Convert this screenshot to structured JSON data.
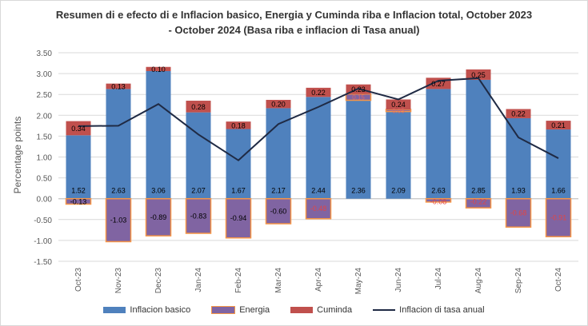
{
  "chart_data": {
    "type": "bar",
    "title_line_1": "Resumen di e efecto di e Inflacion basico, Energia y Cuminda riba e Inflacion total, October 2023",
    "title_line_2": "- October 2024 (Basa riba e inflacion di Tasa anual)",
    "ylabel": "Percentage points",
    "ylim": [
      -1.5,
      3.5
    ],
    "yticks": [
      "3.50",
      "3.00",
      "2.50",
      "2.00",
      "1.50",
      "1.00",
      "0.50",
      "0.00",
      "-0.50",
      "-1.00",
      "-1.50"
    ],
    "categories": [
      "Oct-23",
      "Nov-23",
      "Dec-23",
      "Jan-24",
      "Feb-24",
      "Mar-24",
      "Apr-24",
      "May-24",
      "Jun-24",
      "Jul-24",
      "Aug-24",
      "Sep-24",
      "Oct-24"
    ],
    "series": [
      {
        "name": "Inflacion basico",
        "kind": "bar",
        "color": "#4f81bd",
        "values": [
          1.52,
          2.63,
          3.06,
          2.07,
          1.67,
          2.17,
          2.44,
          2.36,
          2.09,
          2.63,
          2.85,
          1.93,
          1.66
        ],
        "labels": [
          "1.52",
          "2.63",
          "3.06",
          "2.07",
          "1.67",
          "2.17",
          "2.44",
          "2.36",
          "2.09",
          "2.63",
          "2.85",
          "1.93",
          "1.66"
        ]
      },
      {
        "name": "Energia",
        "kind": "bar",
        "color": "#8064a2",
        "border": "#f79646",
        "values": [
          -0.13,
          -1.03,
          -0.89,
          -0.83,
          -0.94,
          -0.6,
          -0.48,
          0.15,
          0.05,
          -0.08,
          -0.22,
          -0.68,
          -0.91
        ],
        "labels": [
          "-0.13",
          "-1.03",
          "-0.89",
          "-0.83",
          "-0.94",
          "-0.60",
          "-0.48",
          "0.15",
          "0.05",
          "-0.08",
          "-0.22",
          "-0.68",
          "-0.91"
        ]
      },
      {
        "name": "Cuminda",
        "kind": "bar",
        "color": "#c0504d",
        "values": [
          0.34,
          0.13,
          0.1,
          0.28,
          0.18,
          0.2,
          0.22,
          0.23,
          0.24,
          0.27,
          0.25,
          0.22,
          0.21
        ],
        "labels": [
          "0.34",
          "0.13",
          "0.10",
          "0.28",
          "0.18",
          "0.20",
          "0.22",
          "0.23",
          "0.24",
          "0.27",
          "0.25",
          "0.22",
          "0.21"
        ]
      },
      {
        "name": "Inflacion di tasa anual",
        "kind": "line",
        "color": "#1f2a44",
        "values": [
          1.74,
          1.75,
          2.27,
          1.54,
          0.92,
          1.79,
          2.2,
          2.64,
          2.38,
          2.83,
          2.89,
          1.47,
          0.97
        ]
      }
    ],
    "legend_position": "bottom",
    "grid": true
  }
}
